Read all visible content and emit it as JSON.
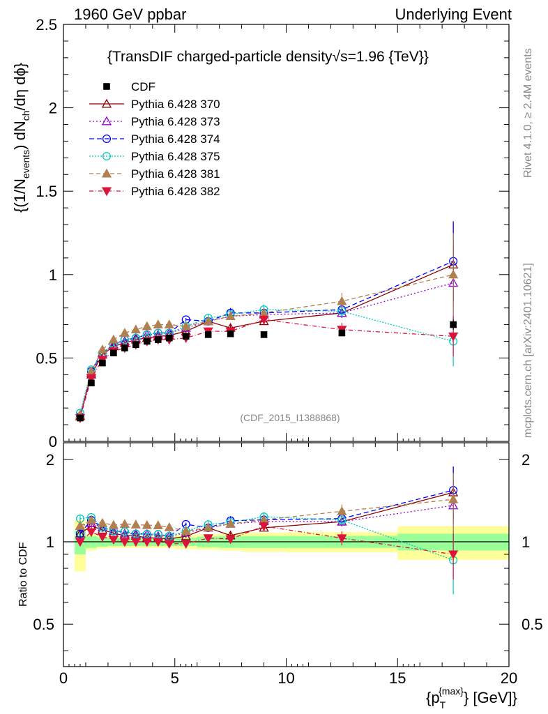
{
  "header": {
    "left": "1960 GeV ppbar",
    "right": "Underlying Event"
  },
  "side_labels": {
    "rivet": "Rivet 4.1.0, ≥ 2.4M events",
    "mcplots": "mcplots.cern.ch [arXiv:2401.10621]"
  },
  "chart_data": {
    "type": "scatter",
    "title": "{TransDIF charged-particle density",
    "title_sqrt": "√",
    "title_tail": "s=1.96 {TeV}}",
    "watermark": "(CDF_2015_I1388868)",
    "ylabel_main": "{(1/N",
    "ylabel_sub_events": "events",
    "ylabel_mid": ") dN",
    "ylabel_sub_ch": "ch",
    "ylabel_tail": "/dη dϕ}",
    "ratio_ylabel": "Ratio to CDF",
    "xlabel_main": "{p",
    "xlabel_sub": "T",
    "xlabel_sup": "{max}",
    "xlabel_tail": "} [GeV]}",
    "xlim": [
      0,
      20
    ],
    "ylim": [
      0,
      2.5
    ],
    "ratio_ylim": [
      0.35,
      2.3
    ],
    "x_ticks": [
      "0",
      "5",
      "10",
      "15",
      "20"
    ],
    "x_tick_values": [
      0,
      5,
      10,
      15,
      20
    ],
    "y_ticks": [
      "0",
      "0.5",
      "1",
      "1.5",
      "2",
      "2.5"
    ],
    "y_tick_values": [
      0,
      0.5,
      1,
      1.5,
      2,
      2.5
    ],
    "ratio_y_ticks": [
      "0.5",
      "1",
      "2"
    ],
    "ratio_y_tick_values": [
      0.5,
      1,
      2
    ],
    "data": {
      "name": "CDF",
      "x": [
        0.75,
        1.25,
        1.75,
        2.25,
        2.75,
        3.25,
        3.75,
        4.25,
        4.75,
        5.5,
        6.5,
        7.5,
        9.0,
        12.5,
        17.5
      ],
      "y": [
        0.14,
        0.35,
        0.47,
        0.53,
        0.56,
        0.58,
        0.6,
        0.61,
        0.62,
        0.63,
        0.64,
        0.645,
        0.64,
        0.65,
        0.7
      ],
      "err": [
        0.01,
        0.015,
        0.015,
        0.015,
        0.015,
        0.015,
        0.015,
        0.015,
        0.015,
        0.015,
        0.015,
        0.015,
        0.015,
        0.015,
        0.03
      ]
    },
    "ratio_bands": {
      "x_edges": [
        0.5,
        1.0,
        1.5,
        2.0,
        2.5,
        3.0,
        3.5,
        4.0,
        4.5,
        5.0,
        6.0,
        7.0,
        8.0,
        10.0,
        15.0,
        20.0
      ],
      "stat_lo": [
        0.9,
        0.95,
        0.96,
        0.965,
        0.965,
        0.965,
        0.965,
        0.965,
        0.965,
        0.965,
        0.955,
        0.95,
        0.95,
        0.95,
        0.93
      ],
      "stat_hi": [
        1.1,
        1.05,
        1.04,
        1.035,
        1.035,
        1.035,
        1.035,
        1.035,
        1.035,
        1.035,
        1.045,
        1.05,
        1.05,
        1.05,
        1.07
      ],
      "tot_lo": [
        0.78,
        0.93,
        0.945,
        0.95,
        0.95,
        0.95,
        0.95,
        0.95,
        0.95,
        0.94,
        0.935,
        0.93,
        0.92,
        0.915,
        0.86
      ],
      "tot_hi": [
        1.2,
        1.07,
        1.055,
        1.05,
        1.05,
        1.05,
        1.05,
        1.05,
        1.05,
        1.06,
        1.065,
        1.07,
        1.08,
        1.085,
        1.14
      ]
    },
    "series": [
      {
        "name": "Pythia 6.428 370",
        "color": "#8b0000",
        "marker": "triangle-open",
        "dash": "",
        "x": [
          0.75,
          1.25,
          1.75,
          2.25,
          2.75,
          3.25,
          3.75,
          4.25,
          4.75,
          5.5,
          6.5,
          7.5,
          9.0,
          12.5,
          17.5
        ],
        "y": [
          0.15,
          0.4,
          0.52,
          0.57,
          0.59,
          0.61,
          0.62,
          0.63,
          0.635,
          0.66,
          0.72,
          0.68,
          0.72,
          0.77,
          1.06
        ],
        "err": [
          0.005,
          0.01,
          0.01,
          0.01,
          0.01,
          0.01,
          0.01,
          0.01,
          0.01,
          0.01,
          0.02,
          0.02,
          0.02,
          0.03,
          0.25
        ]
      },
      {
        "name": "Pythia 6.428 373",
        "color": "#9400d3",
        "marker": "triangle-open",
        "dash": "2,3",
        "x": [
          0.75,
          1.25,
          1.75,
          2.25,
          2.75,
          3.25,
          3.75,
          4.25,
          4.75,
          5.5,
          6.5,
          7.5,
          9.0,
          12.5,
          17.5
        ],
        "y": [
          0.16,
          0.41,
          0.53,
          0.58,
          0.6,
          0.62,
          0.64,
          0.64,
          0.65,
          0.68,
          0.72,
          0.75,
          0.76,
          0.77,
          0.95
        ],
        "err": [
          0.005,
          0.01,
          0.01,
          0.01,
          0.01,
          0.01,
          0.01,
          0.01,
          0.01,
          0.01,
          0.02,
          0.02,
          0.03,
          0.03,
          0.25
        ]
      },
      {
        "name": "Pythia 6.428 374",
        "color": "#0000ff",
        "marker": "circle-open",
        "dash": "7,4",
        "x": [
          0.75,
          1.25,
          1.75,
          2.25,
          2.75,
          3.25,
          3.75,
          4.25,
          4.75,
          5.5,
          6.5,
          7.5,
          9.0,
          12.5,
          17.5
        ],
        "y": [
          0.15,
          0.42,
          0.53,
          0.58,
          0.61,
          0.62,
          0.64,
          0.65,
          0.65,
          0.73,
          0.72,
          0.77,
          0.77,
          0.79,
          1.08
        ],
        "err": [
          0.005,
          0.01,
          0.01,
          0.01,
          0.01,
          0.01,
          0.01,
          0.01,
          0.01,
          0.01,
          0.02,
          0.03,
          0.03,
          0.04,
          0.24
        ]
      },
      {
        "name": "Pythia 6.428 375",
        "color": "#00ccbb",
        "marker": "circle-open",
        "dash": "2,2",
        "x": [
          0.75,
          1.25,
          1.75,
          2.25,
          2.75,
          3.25,
          3.75,
          4.25,
          4.75,
          5.5,
          6.5,
          7.5,
          9.0,
          12.5,
          17.5
        ],
        "y": [
          0.17,
          0.43,
          0.53,
          0.58,
          0.61,
          0.62,
          0.64,
          0.65,
          0.65,
          0.69,
          0.74,
          0.76,
          0.79,
          0.78,
          0.6
        ],
        "err": [
          0.005,
          0.01,
          0.01,
          0.01,
          0.01,
          0.01,
          0.01,
          0.01,
          0.01,
          0.01,
          0.02,
          0.02,
          0.03,
          0.03,
          0.15
        ]
      },
      {
        "name": "Pythia 6.428 381",
        "color": "#b08050",
        "marker": "triangle-filled",
        "dash": "6,4",
        "x": [
          0.75,
          1.25,
          1.75,
          2.25,
          2.75,
          3.25,
          3.75,
          4.25,
          4.75,
          5.5,
          6.5,
          7.5,
          9.0,
          12.5,
          17.5
        ],
        "y": [
          0.16,
          0.42,
          0.55,
          0.61,
          0.65,
          0.67,
          0.69,
          0.7,
          0.7,
          0.69,
          0.72,
          0.75,
          0.77,
          0.84,
          1.0
        ],
        "err": [
          0.005,
          0.01,
          0.01,
          0.01,
          0.01,
          0.01,
          0.01,
          0.01,
          0.01,
          0.01,
          0.02,
          0.02,
          0.03,
          0.05,
          0.25
        ]
      },
      {
        "name": "Pythia 6.428 382",
        "color": "#dc143c",
        "marker": "triangle-down-filled",
        "dash": "6,3,1,3",
        "x": [
          0.75,
          1.25,
          1.75,
          2.25,
          2.75,
          3.25,
          3.75,
          4.25,
          4.75,
          5.5,
          6.5,
          7.5,
          9.0,
          12.5,
          17.5
        ],
        "y": [
          0.14,
          0.38,
          0.49,
          0.54,
          0.56,
          0.58,
          0.6,
          0.61,
          0.61,
          0.62,
          0.66,
          0.66,
          0.73,
          0.67,
          0.63
        ],
        "err": [
          0.005,
          0.01,
          0.01,
          0.01,
          0.01,
          0.01,
          0.01,
          0.01,
          0.01,
          0.01,
          0.02,
          0.02,
          0.03,
          0.04,
          0.12
        ]
      }
    ]
  }
}
